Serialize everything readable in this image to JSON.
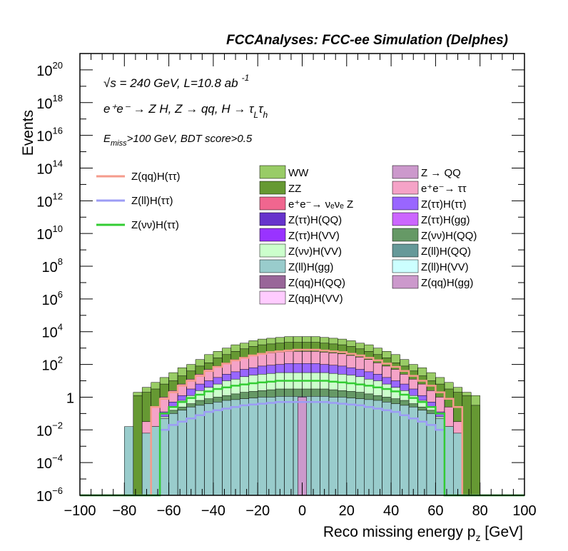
{
  "header": {
    "title": "FCCAnalyses: FCC-ee Simulation (Delphes)"
  },
  "annotations": {
    "line1": "√s = 240 GeV, L=10.8 ab",
    "line1_sup": "-1",
    "line2": "e⁺e⁻ → Z H, Z → qq, H → τ",
    "line2_sub1": "L",
    "line2_mid": "τ",
    "line2_sub2": "h",
    "line3_e": "E",
    "line3_sub": "miss",
    "line3_rest": ">100 GeV, BDT score>0.5"
  },
  "axes": {
    "xlabel": "Reco missing energy p",
    "xlabel_sub": "z",
    "xlabel_unit": " [GeV]",
    "ylabel": "Events"
  },
  "legend": {
    "lines": [
      {
        "name": "Z(qq)H(ττ)",
        "color": "#f59b8c"
      },
      {
        "name": "Z(ll)H(ττ)",
        "color": "#9c9cf5"
      },
      {
        "name": "Z(νν)H(ττ)",
        "color": "#33cc33"
      }
    ],
    "fills": [
      {
        "name": "WW",
        "color": "#99cc66"
      },
      {
        "name": "Z → QQ",
        "color": "#cc99cc"
      },
      {
        "name": "ZZ",
        "color": "#669933"
      },
      {
        "name": "e⁺e⁻→ ττ",
        "color": "#f5a3c7"
      },
      {
        "name": "e⁺e⁻→ νₑνₑ Z",
        "color": "#f0668f"
      },
      {
        "name": "Z(ττ)H(ττ)",
        "color": "#9966ff"
      },
      {
        "name": "Z(ττ)H(QQ)",
        "color": "#6633cc"
      },
      {
        "name": "Z(ττ)H(gg)",
        "color": "#cc66ff"
      },
      {
        "name": "Z(ττ)H(VV)",
        "color": "#9933ff"
      },
      {
        "name": "Z(νν)H(QQ)",
        "color": "#669966"
      },
      {
        "name": "Z(νν)H(VV)",
        "color": "#ccffcc"
      },
      {
        "name": "Z(ll)H(QQ)",
        "color": "#669999"
      },
      {
        "name": "Z(ll)H(gg)",
        "color": "#99cccc"
      },
      {
        "name": "Z(ll)H(VV)",
        "color": "#ccffff"
      },
      {
        "name": "Z(qq)H(QQ)",
        "color": "#996699"
      },
      {
        "name": "Z(qq)H(gg)",
        "color": "#cc99cc"
      },
      {
        "name": "Z(qq)H(VV)",
        "color": "#ffccff"
      }
    ]
  },
  "chart_data": {
    "type": "area",
    "title": "FCCAnalyses: FCC-ee Simulation (Delphes)",
    "xlabel": "Reco missing energy p_z [GeV]",
    "ylabel": "Events",
    "xlim": [
      -100,
      100
    ],
    "ylim": [
      1e-06,
      1e+21
    ],
    "yscale": "log",
    "x_ticks": [
      -100,
      -80,
      -60,
      -40,
      -20,
      0,
      20,
      40,
      60,
      80,
      100
    ],
    "y_ticks": [
      {
        "exp": -6,
        "label": "10",
        "sup": "-6"
      },
      {
        "exp": -4,
        "label": "10",
        "sup": "-4"
      },
      {
        "exp": -2,
        "label": "10",
        "sup": "-2"
      },
      {
        "exp": 0,
        "label": "1",
        "sup": ""
      },
      {
        "exp": 2,
        "label": "10",
        "sup": "2"
      },
      {
        "exp": 4,
        "label": "10",
        "sup": "4"
      },
      {
        "exp": 6,
        "label": "10",
        "sup": "6"
      },
      {
        "exp": 8,
        "label": "10",
        "sup": "8"
      },
      {
        "exp": 10,
        "label": "10",
        "sup": "10"
      },
      {
        "exp": 12,
        "label": "10",
        "sup": "12"
      },
      {
        "exp": 14,
        "label": "10",
        "sup": "14"
      },
      {
        "exp": 16,
        "label": "10",
        "sup": "16"
      },
      {
        "exp": 18,
        "label": "10",
        "sup": "18"
      },
      {
        "exp": 20,
        "label": "10",
        "sup": "20"
      }
    ],
    "bin_edges": [
      -100,
      -96,
      -92,
      -88,
      -84,
      -80,
      -76,
      -72,
      -68,
      -64,
      -60,
      -56,
      -52,
      -48,
      -44,
      -40,
      -36,
      -32,
      -28,
      -24,
      -20,
      -16,
      -12,
      -8,
      -4,
      0,
      4,
      8,
      12,
      16,
      20,
      24,
      28,
      32,
      36,
      40,
      44,
      48,
      52,
      56,
      60,
      64,
      68,
      72,
      76,
      80,
      84,
      88,
      92,
      96,
      100
    ],
    "stacked_total_series": [
      {
        "name": "WW",
        "color": "#99cc66",
        "log10_values": [
          -7,
          -7,
          -7,
          -7,
          -7,
          -7,
          0.3,
          0.6,
          0.9,
          1.2,
          1.5,
          1.8,
          2.0,
          2.3,
          2.6,
          2.8,
          3.0,
          3.2,
          3.3,
          3.45,
          3.55,
          3.6,
          3.65,
          3.7,
          3.7,
          3.7,
          3.7,
          3.65,
          3.6,
          3.55,
          3.45,
          3.3,
          3.2,
          3.0,
          2.8,
          2.6,
          2.3,
          2.0,
          1.8,
          1.5,
          1.2,
          0.9,
          0.6,
          0.3,
          0.1,
          -7,
          -7,
          -7,
          -7,
          -7
        ]
      },
      {
        "name": "ZZ",
        "color": "#669933",
        "log10_values": [
          -7,
          -7,
          -7,
          -7,
          -7,
          -7,
          0.1,
          0.3,
          0.5,
          0.8,
          1.0,
          1.3,
          1.6,
          1.9,
          2.1,
          2.4,
          2.6,
          2.8,
          2.95,
          3.1,
          3.2,
          3.25,
          3.3,
          3.35,
          3.35,
          3.35,
          3.35,
          3.3,
          3.25,
          3.2,
          3.1,
          2.95,
          2.8,
          2.6,
          2.4,
          2.1,
          1.9,
          1.6,
          1.3,
          1.0,
          0.8,
          0.5,
          0.3,
          0.1,
          -0.5,
          -7,
          -7,
          -7,
          -7,
          -7
        ]
      },
      {
        "name": "e⁺e⁻→ ττ",
        "color": "#f5a3c7",
        "log10_values": [
          -7,
          -7,
          -7,
          -7,
          -7,
          -7,
          -7,
          -1.5,
          -0.6,
          0.0,
          0.4,
          0.8,
          1.1,
          1.4,
          1.7,
          1.9,
          2.1,
          2.3,
          2.45,
          2.55,
          2.65,
          2.7,
          2.75,
          2.8,
          2.8,
          2.8,
          2.8,
          2.75,
          2.7,
          2.65,
          2.55,
          2.45,
          2.3,
          2.1,
          1.9,
          1.7,
          1.4,
          1.1,
          0.8,
          0.4,
          0.0,
          -0.6,
          -1.5,
          -7,
          -7,
          -7,
          -7,
          -7,
          -7,
          -7
        ]
      },
      {
        "name": "Z(ττ)H(ττ)",
        "color": "#9966ff",
        "log10_values": [
          -7,
          -7,
          -7,
          -7,
          -7,
          -7,
          -7,
          -7,
          -1.8,
          -0.9,
          -0.3,
          0.1,
          0.5,
          0.8,
          1.0,
          1.2,
          1.4,
          1.55,
          1.7,
          1.8,
          1.9,
          1.95,
          2.0,
          2.05,
          2.05,
          2.05,
          2.05,
          2.0,
          1.95,
          1.9,
          1.8,
          1.7,
          1.55,
          1.4,
          1.2,
          1.0,
          0.8,
          0.5,
          0.1,
          -0.3,
          -0.9,
          -1.8,
          -7,
          -7,
          -7,
          -7,
          -7,
          -7,
          -7,
          -7
        ]
      },
      {
        "name": "Z(νν)H(VV)",
        "color": "#ccffcc",
        "log10_values": [
          -7,
          -7,
          -7,
          -7,
          -7,
          -7,
          -7,
          -7,
          -2.0,
          -1.2,
          -0.6,
          -0.2,
          0.1,
          0.4,
          0.6,
          0.8,
          1.0,
          1.1,
          1.25,
          1.35,
          1.4,
          1.45,
          1.5,
          1.5,
          1.5,
          1.5,
          1.5,
          1.5,
          1.45,
          1.4,
          1.35,
          1.25,
          1.1,
          1.0,
          0.8,
          0.6,
          0.4,
          0.1,
          -0.2,
          -0.6,
          -1.2,
          -2.0,
          -7,
          -7,
          -7,
          -7,
          -7,
          -7,
          -7,
          -7
        ]
      },
      {
        "name": "Z(νν)H(QQ)",
        "color": "#669966",
        "log10_values": [
          -7,
          -7,
          -7,
          -7,
          -7,
          -7,
          -7,
          -7,
          -2.0,
          -1.3,
          -0.8,
          -0.6,
          -0.4,
          -0.2,
          -0.1,
          0.0,
          0.1,
          0.2,
          0.3,
          0.35,
          0.4,
          0.45,
          0.5,
          0.5,
          0.5,
          0.5,
          0.5,
          0.5,
          0.45,
          0.4,
          0.35,
          0.3,
          0.2,
          0.1,
          0.0,
          -0.1,
          -0.2,
          -0.4,
          -0.6,
          -0.8,
          -1.3,
          -2.0,
          -2.6,
          -7,
          -7,
          -7,
          -7,
          -7,
          -7,
          -7
        ]
      },
      {
        "name": "Z(ll)H(gg)",
        "color": "#99cccc",
        "log10_values": [
          -7,
          -7,
          -7,
          -7,
          -7,
          -1.8,
          -7,
          -2.2,
          -1.8,
          -1.3,
          -1.0,
          -0.8,
          -0.6,
          -0.5,
          -0.4,
          -0.3,
          -0.2,
          -0.15,
          -0.1,
          -0.05,
          0.0,
          0.0,
          0.05,
          0.05,
          0.05,
          0.05,
          0.05,
          0.05,
          0.0,
          0.0,
          -0.05,
          -0.1,
          -0.15,
          -0.2,
          -0.3,
          -0.4,
          -0.5,
          -0.6,
          -0.8,
          -1.0,
          -1.3,
          -1.8,
          -2.2,
          -7,
          -7,
          -7,
          -7,
          -7,
          -7,
          -7
        ]
      }
    ],
    "spike": {
      "x": [
        -2,
        2
      ],
      "log10_value": 0.0,
      "color": "#cc99cc"
    },
    "signal_lines": [
      {
        "name": "Z(qq)H(ττ)",
        "color": "#f59b8c",
        "log10_values": [
          -7,
          -7,
          -7,
          -7,
          -7,
          -7,
          -7,
          -7,
          -0.6,
          -0.1,
          0.3,
          0.7,
          1.0,
          1.3,
          1.6,
          1.85,
          2.05,
          2.25,
          2.4,
          2.55,
          2.65,
          2.75,
          2.8,
          2.85,
          2.9,
          2.9,
          2.9,
          2.85,
          2.8,
          2.75,
          2.65,
          2.55,
          2.4,
          2.25,
          2.05,
          1.85,
          1.6,
          1.3,
          1.0,
          0.7,
          0.3,
          -0.1,
          -0.6,
          -7,
          -7,
          -7,
          -7,
          -7,
          -7,
          -7
        ]
      },
      {
        "name": "Z(ll)H(ττ)",
        "color": "#9c9cf5",
        "log10_values": [
          -7,
          -7,
          -7,
          -7,
          -7,
          -7,
          -7,
          -7,
          -7,
          -2.0,
          -1.7,
          -1.5,
          -1.3,
          -1.1,
          -0.9,
          -0.8,
          -0.7,
          -0.6,
          -0.5,
          -0.45,
          -0.4,
          -0.35,
          -0.3,
          -0.3,
          -0.3,
          -0.3,
          -0.3,
          -0.3,
          -0.35,
          -0.4,
          -0.45,
          -0.5,
          -0.6,
          -0.7,
          -0.8,
          -0.9,
          -1.1,
          -1.3,
          -1.5,
          -1.7,
          -2.0,
          -7,
          -7,
          -7,
          -7,
          -7,
          -7,
          -7,
          -7,
          -7
        ]
      },
      {
        "name": "Z(νν)H(ττ)",
        "color": "#33cc33",
        "log10_values": [
          -7,
          -7,
          -7,
          -7,
          -7,
          -7,
          -7,
          -7,
          -7,
          -1.0,
          -0.6,
          -0.3,
          -0.05,
          0.15,
          0.35,
          0.5,
          0.6,
          0.7,
          0.78,
          0.85,
          0.9,
          0.95,
          1.0,
          1.0,
          1.0,
          1.0,
          1.0,
          1.0,
          0.95,
          0.9,
          0.85,
          0.78,
          0.7,
          0.6,
          0.5,
          0.35,
          0.15,
          -0.05,
          -0.3,
          -0.6,
          -1.0,
          -7,
          -7,
          -7,
          -7,
          -7,
          -7,
          -7,
          -7,
          -7
        ]
      }
    ]
  }
}
